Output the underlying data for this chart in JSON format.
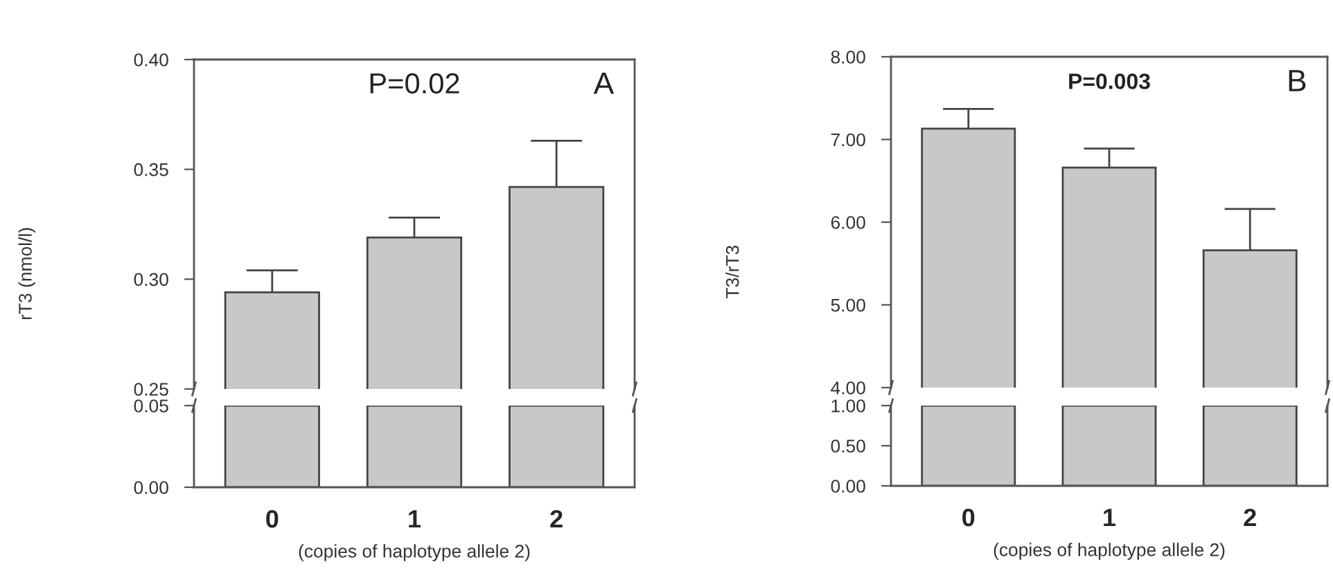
{
  "chart_data": [
    {
      "type": "bar",
      "ylabel": "rT3 (nmol/l)",
      "annotations": [
        "P=0.02",
        "A"
      ],
      "categories": [
        "0",
        "1",
        "2"
      ],
      "tick_labels": "y",
      "series": [
        {
          "color": "#c8c8c8",
          "values": [
            0.294,
            0.319,
            0.342
          ],
          "errors": [
            [
              0.294,
              0.304
            ],
            [
              0.319,
              0.328
            ],
            [
              0.342,
              0.363
            ]
          ]
        }
      ],
      "ylim": [
        0.25,
        0.4
      ],
      "yticks": [
        {
          "value": 0.25,
          "label": "0.25"
        },
        {
          "value": 0.3,
          "label": "0.30"
        },
        {
          "value": 0.35,
          "label": "0.35"
        },
        {
          "value": 0.4,
          "label": "0.40"
        }
      ],
      "grid": false,
      "legend": false
    },
    {
      "type": "bar",
      "xlabel": "(copies of haplotype allele 2)",
      "categories": [
        "0",
        "1",
        "2"
      ],
      "series": [
        {
          "color": "#c8c8c8",
          "values": [
            0.05,
            0.05,
            0.05
          ]
        }
      ],
      "ylim": [
        0,
        0.05
      ],
      "yticks": [
        {
          "value": 0,
          "label": "0.00"
        },
        {
          "value": 0.05,
          "label": "0.05"
        }
      ],
      "grid": false,
      "legend": false
    },
    {
      "type": "bar",
      "ylabel": "T3/rT3",
      "annotations": [
        "P=0.003",
        "B"
      ],
      "categories": [
        "0",
        "1",
        "2"
      ],
      "tick_labels": "y",
      "series": [
        {
          "color": "#c8c8c8",
          "values": [
            7.13,
            6.66,
            5.66
          ],
          "errors": [
            [
              7.13,
              7.37
            ],
            [
              6.66,
              6.89
            ],
            [
              5.66,
              6.16
            ]
          ]
        }
      ],
      "ylim": [
        4,
        8
      ],
      "yticks": [
        {
          "value": 4,
          "label": "4.00"
        },
        {
          "value": 5,
          "label": "5.00"
        },
        {
          "value": 6,
          "label": "6.00"
        },
        {
          "value": 7,
          "label": "7.00"
        },
        {
          "value": 8,
          "label": "8.00"
        }
      ],
      "grid": false,
      "legend": false
    },
    {
      "type": "bar",
      "xlabel": "(copies of haplotype allele 2)",
      "categories": [
        "0",
        "1",
        "2"
      ],
      "series": [
        {
          "color": "#c8c8c8",
          "values": [
            1.0,
            1.0,
            1.0
          ]
        }
      ],
      "ylim": [
        0,
        1
      ],
      "yticks": [
        {
          "value": 0,
          "label": "0.00"
        },
        {
          "value": 0.5,
          "label": "0.50"
        },
        {
          "value": 1,
          "label": "1.00"
        }
      ],
      "grid": false,
      "legend": false
    }
  ]
}
